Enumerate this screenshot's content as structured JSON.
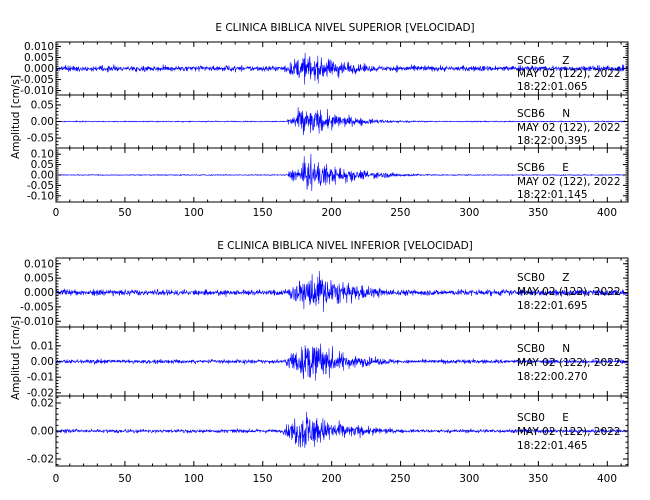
{
  "colors": {
    "trace": "#0000ff",
    "axis": "#000000",
    "background": "#ffffff"
  },
  "chart_data": [
    {
      "type": "line",
      "title": "E CLINICA BIBLICA NIVEL SUPERIOR [VELOCIDAD]",
      "ylabel": "Amplitud [cm/s]",
      "xlim": [
        0,
        415
      ],
      "x_ticks": [
        "0",
        "50",
        "100",
        "150",
        "200",
        "250",
        "300",
        "350",
        "400"
      ],
      "grid": false,
      "series": [
        {
          "station": "SCB6",
          "component": "Z",
          "date": "MAY 02 (122), 2022",
          "time": "18:22:01.065",
          "ylim": [
            -0.012,
            0.012
          ],
          "y_ticks": [
            0.01,
            0.005,
            0.0,
            -0.005,
            -0.01
          ],
          "y_tick_labels": [
            "0.010",
            "0.005",
            "0.000",
            "-0.005",
            "-0.010"
          ],
          "peak_amplitude": 0.011,
          "background_amplitude": 0.0015,
          "onset_seconds": 165,
          "peak_seconds": 185
        },
        {
          "station": "SCB6",
          "component": "N",
          "date": "MAY 02 (122), 2022",
          "time": "18:22:00.395",
          "ylim": [
            -0.08,
            0.08
          ],
          "y_ticks": [
            0.05,
            0.0,
            -0.05
          ],
          "y_tick_labels": [
            "0.05",
            "0.00",
            "-0.05"
          ],
          "peak_amplitude": 0.07,
          "background_amplitude": 0.002,
          "onset_seconds": 168,
          "peak_seconds": 182
        },
        {
          "station": "SCB6",
          "component": "E",
          "date": "MAY 02 (122), 2022",
          "time": "18:22:01.145",
          "ylim": [
            -0.13,
            0.13
          ],
          "y_ticks": [
            0.1,
            0.05,
            0.0,
            -0.05,
            -0.1
          ],
          "y_tick_labels": [
            "0.10",
            "0.05",
            "0.00",
            "-0.05",
            "-0.10"
          ],
          "peak_amplitude": 0.12,
          "background_amplitude": 0.003,
          "onset_seconds": 168,
          "peak_seconds": 188
        }
      ]
    },
    {
      "type": "line",
      "title": "E CLINICA BIBLICA NIVEL INFERIOR [VELOCIDAD]",
      "ylabel": "Amplitud [cm/s]",
      "xlim": [
        0,
        415
      ],
      "x_ticks": [
        "0",
        "50",
        "100",
        "150",
        "200",
        "250",
        "300",
        "350",
        "400"
      ],
      "grid": false,
      "series": [
        {
          "station": "SCB0",
          "component": "Z",
          "date": "MAY 02 (122), 2022",
          "time": "18:22:01.695",
          "ylim": [
            -0.012,
            0.012
          ],
          "y_ticks": [
            0.01,
            0.005,
            0.0,
            -0.005,
            -0.01
          ],
          "y_tick_labels": [
            "0.010",
            "0.005",
            "0.000",
            "-0.005",
            "-0.010"
          ],
          "peak_amplitude": 0.011,
          "background_amplitude": 0.0012,
          "onset_seconds": 165,
          "peak_seconds": 190
        },
        {
          "station": "SCB0",
          "component": "N",
          "date": "MAY 02 (122), 2022",
          "time": "18:22:00.270",
          "ylim": [
            -0.022,
            0.022
          ],
          "y_ticks": [
            0.01,
            0.0,
            -0.01,
            -0.02
          ],
          "y_tick_labels": [
            "0.01",
            "0.00",
            "-0.01",
            "-0.02"
          ],
          "peak_amplitude": 0.02,
          "background_amplitude": 0.0015,
          "onset_seconds": 165,
          "peak_seconds": 185
        },
        {
          "station": "SCB0",
          "component": "E",
          "date": "MAY 02 (122), 2022",
          "time": "18:22:01.465",
          "ylim": [
            -0.025,
            0.025
          ],
          "y_ticks": [
            0.02,
            0.0,
            -0.02
          ],
          "y_tick_labels": [
            "0.02",
            "0.00",
            "-0.02"
          ],
          "peak_amplitude": 0.022,
          "background_amplitude": 0.0015,
          "onset_seconds": 165,
          "peak_seconds": 183
        }
      ]
    }
  ]
}
